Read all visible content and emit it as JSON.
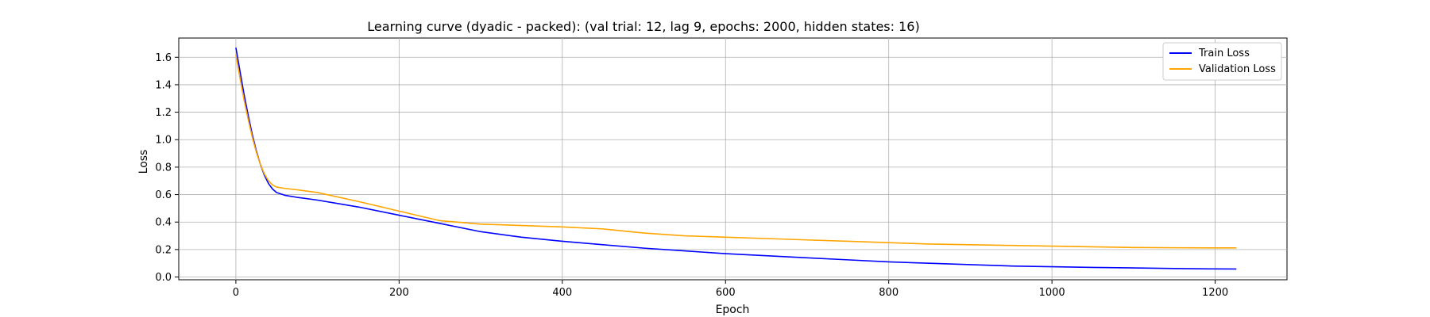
{
  "chart_data": {
    "type": "line",
    "title": "Learning curve (dyadic - packed): (val trial: 12, lag 9, epochs: 2000, hidden states: 16)",
    "xlabel": "Epoch",
    "ylabel": "Loss",
    "xlim": [
      -70,
      1288
    ],
    "ylim": [
      -0.02,
      1.74
    ],
    "xticks": [
      0,
      200,
      400,
      600,
      800,
      1000,
      1200
    ],
    "yticks": [
      0.0,
      0.2,
      0.4,
      0.6,
      0.8,
      1.0,
      1.2,
      1.4,
      1.6
    ],
    "grid": true,
    "legend_position": "top-right",
    "series": [
      {
        "name": "Train Loss",
        "color": "#0000ff",
        "points": [
          [
            0,
            1.67
          ],
          [
            5,
            1.5
          ],
          [
            10,
            1.33
          ],
          [
            15,
            1.18
          ],
          [
            20,
            1.04
          ],
          [
            25,
            0.92
          ],
          [
            30,
            0.82
          ],
          [
            35,
            0.74
          ],
          [
            40,
            0.68
          ],
          [
            45,
            0.64
          ],
          [
            50,
            0.615
          ],
          [
            60,
            0.595
          ],
          [
            75,
            0.58
          ],
          [
            100,
            0.56
          ],
          [
            150,
            0.51
          ],
          [
            200,
            0.45
          ],
          [
            250,
            0.39
          ],
          [
            300,
            0.33
          ],
          [
            350,
            0.29
          ],
          [
            400,
            0.26
          ],
          [
            450,
            0.235
          ],
          [
            500,
            0.21
          ],
          [
            550,
            0.19
          ],
          [
            600,
            0.17
          ],
          [
            650,
            0.155
          ],
          [
            700,
            0.14
          ],
          [
            750,
            0.125
          ],
          [
            800,
            0.11
          ],
          [
            850,
            0.1
          ],
          [
            900,
            0.09
          ],
          [
            950,
            0.08
          ],
          [
            1000,
            0.075
          ],
          [
            1050,
            0.07
          ],
          [
            1100,
            0.066
          ],
          [
            1150,
            0.062
          ],
          [
            1200,
            0.059
          ],
          [
            1226,
            0.058
          ]
        ]
      },
      {
        "name": "Validation Loss",
        "color": "#ffa500",
        "points": [
          [
            0,
            1.62
          ],
          [
            5,
            1.45
          ],
          [
            10,
            1.29
          ],
          [
            15,
            1.15
          ],
          [
            20,
            1.02
          ],
          [
            25,
            0.91
          ],
          [
            30,
            0.82
          ],
          [
            35,
            0.75
          ],
          [
            40,
            0.7
          ],
          [
            45,
            0.67
          ],
          [
            50,
            0.655
          ],
          [
            60,
            0.645
          ],
          [
            75,
            0.635
          ],
          [
            100,
            0.615
          ],
          [
            150,
            0.55
          ],
          [
            200,
            0.48
          ],
          [
            250,
            0.41
          ],
          [
            300,
            0.385
          ],
          [
            350,
            0.375
          ],
          [
            400,
            0.365
          ],
          [
            450,
            0.35
          ],
          [
            500,
            0.32
          ],
          [
            550,
            0.3
          ],
          [
            600,
            0.29
          ],
          [
            650,
            0.28
          ],
          [
            700,
            0.27
          ],
          [
            750,
            0.26
          ],
          [
            800,
            0.25
          ],
          [
            850,
            0.24
          ],
          [
            900,
            0.235
          ],
          [
            950,
            0.23
          ],
          [
            1000,
            0.225
          ],
          [
            1050,
            0.22
          ],
          [
            1100,
            0.215
          ],
          [
            1150,
            0.213
          ],
          [
            1200,
            0.212
          ],
          [
            1226,
            0.212
          ]
        ]
      }
    ]
  }
}
